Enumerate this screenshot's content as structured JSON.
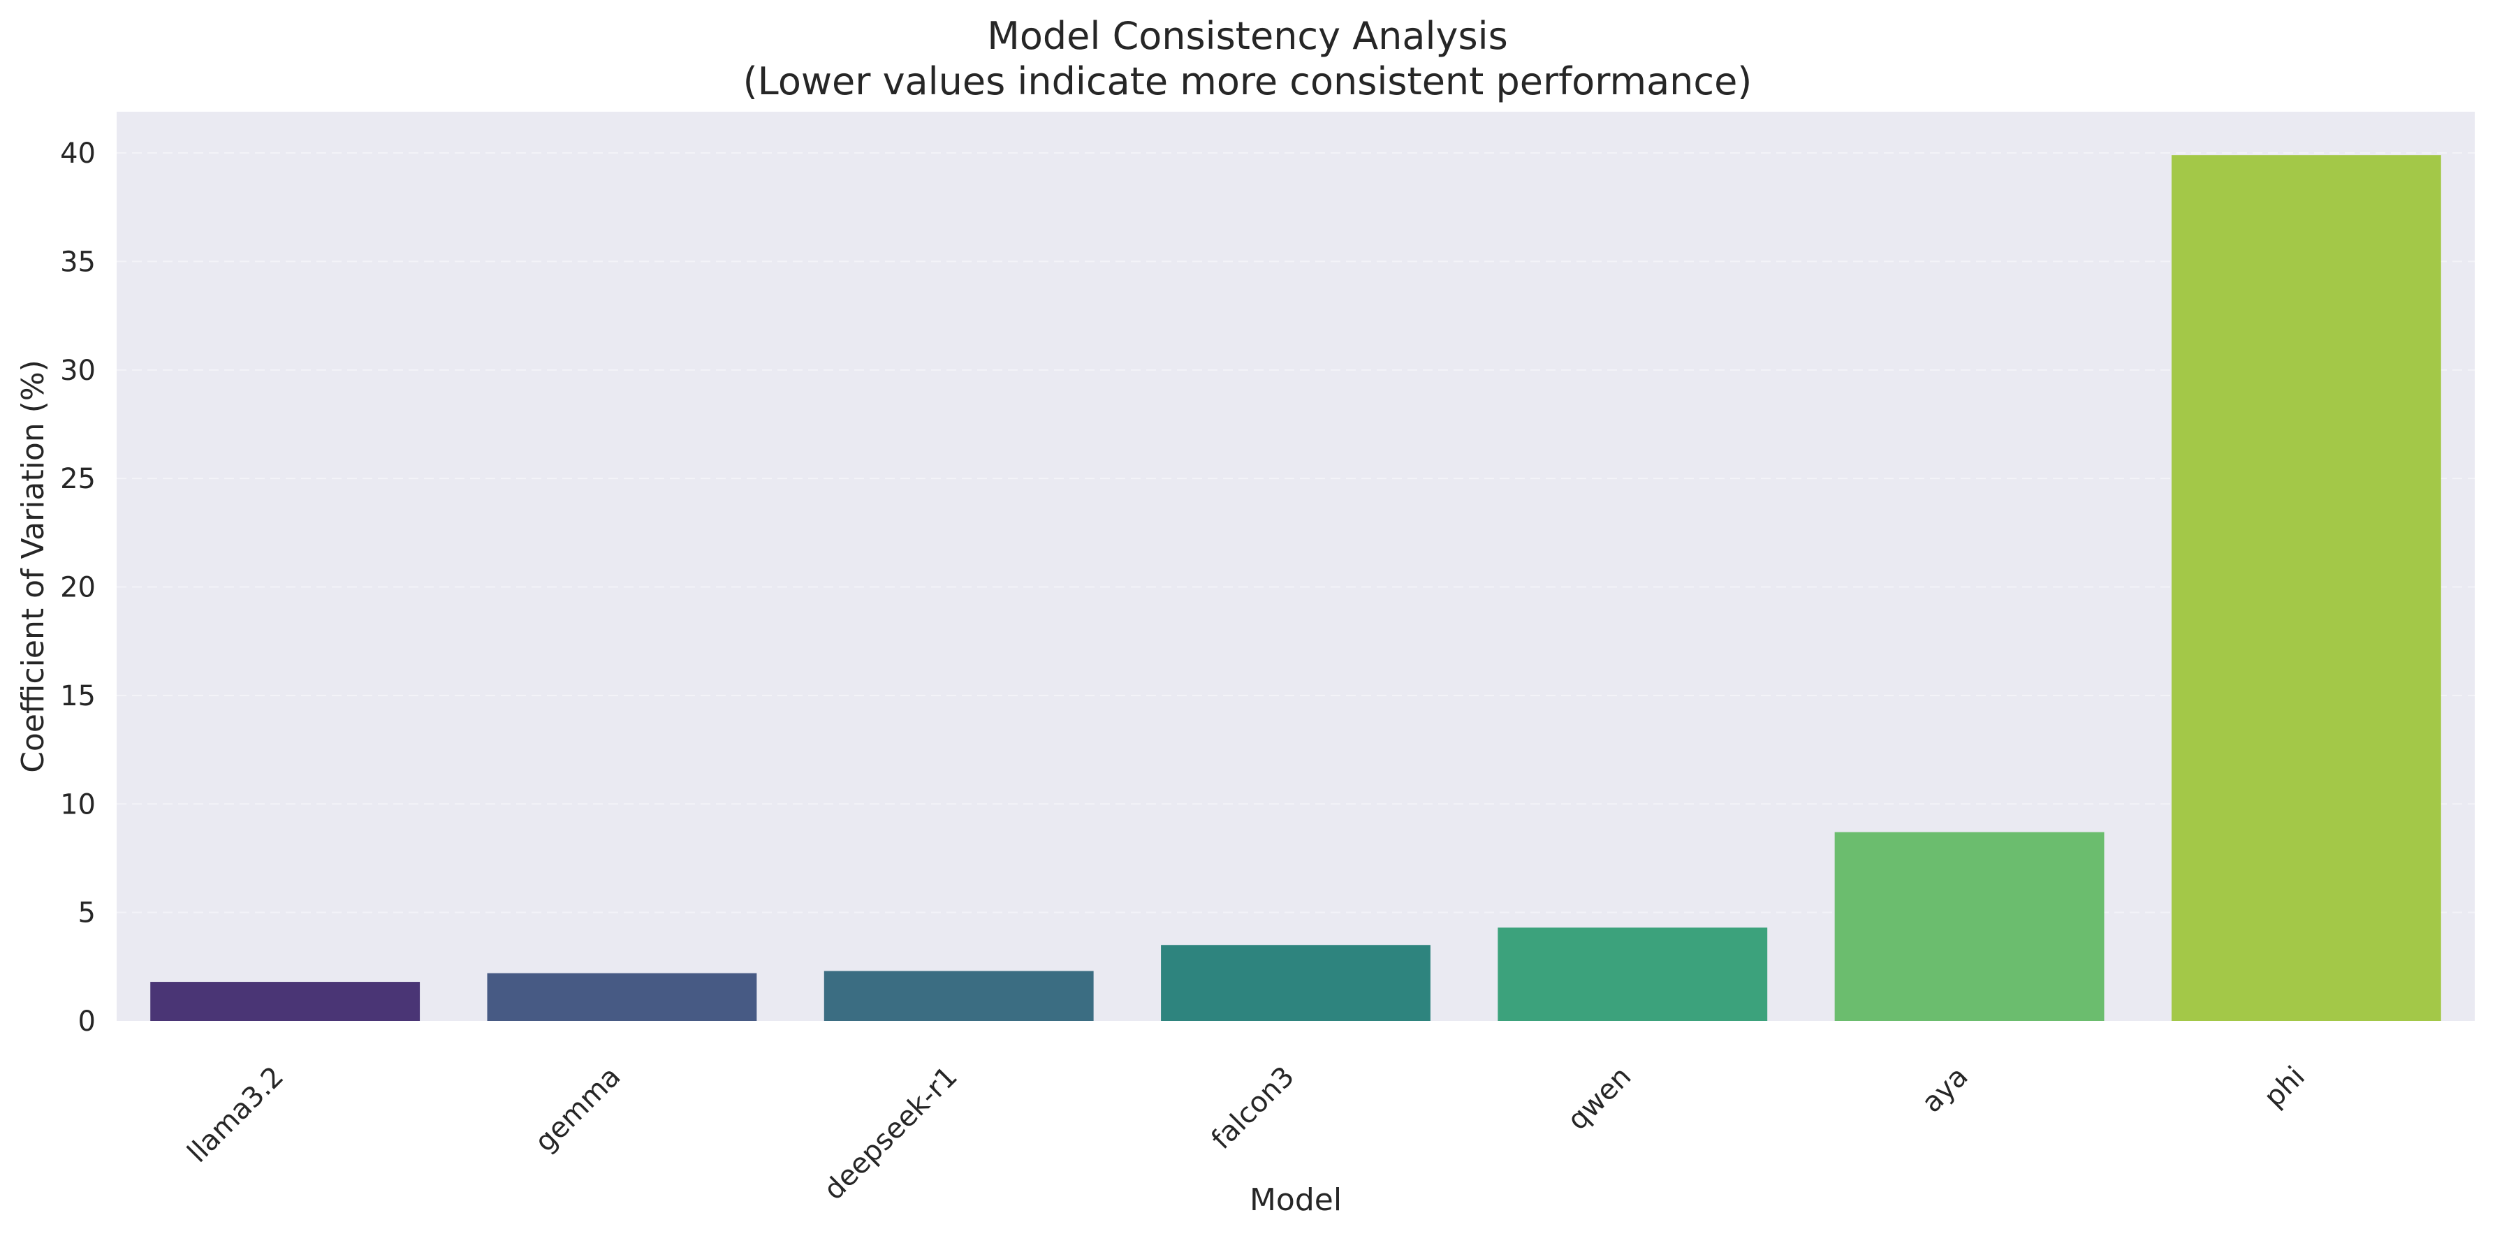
{
  "chart_data": {
    "type": "bar",
    "title": "Model Consistency Analysis",
    "subtitle": "(Lower values indicate more consistent performance)",
    "xlabel": "Model",
    "ylabel": "Coefficient of Variation (%)",
    "categories": [
      "llama3.2",
      "gemma",
      "deepseek-r1",
      "falcon3",
      "qwen",
      "aya",
      "phi"
    ],
    "values": [
      1.8,
      2.2,
      2.3,
      3.5,
      4.3,
      8.7,
      39.9
    ],
    "yticks": [
      0,
      5,
      10,
      15,
      20,
      25,
      30,
      35,
      40
    ],
    "ylim": [
      0,
      41.9
    ],
    "grid": true,
    "legend": "none",
    "colors": [
      "#482475",
      "#414487",
      "#355f8d",
      "#2a788e",
      "#21918c",
      "#22a884",
      "#44bf70",
      "#7ad151",
      "#bddf26"
    ],
    "bar_colors": [
      "#4a3575",
      "#475a84",
      "#3b6d82",
      "#2e847e",
      "#3ca27c",
      "#6bbd6e",
      "#a3c848"
    ],
    "plot_background": "#eaeaf2",
    "grid_color": "#f3f3f8",
    "text_color": "#262626"
  }
}
